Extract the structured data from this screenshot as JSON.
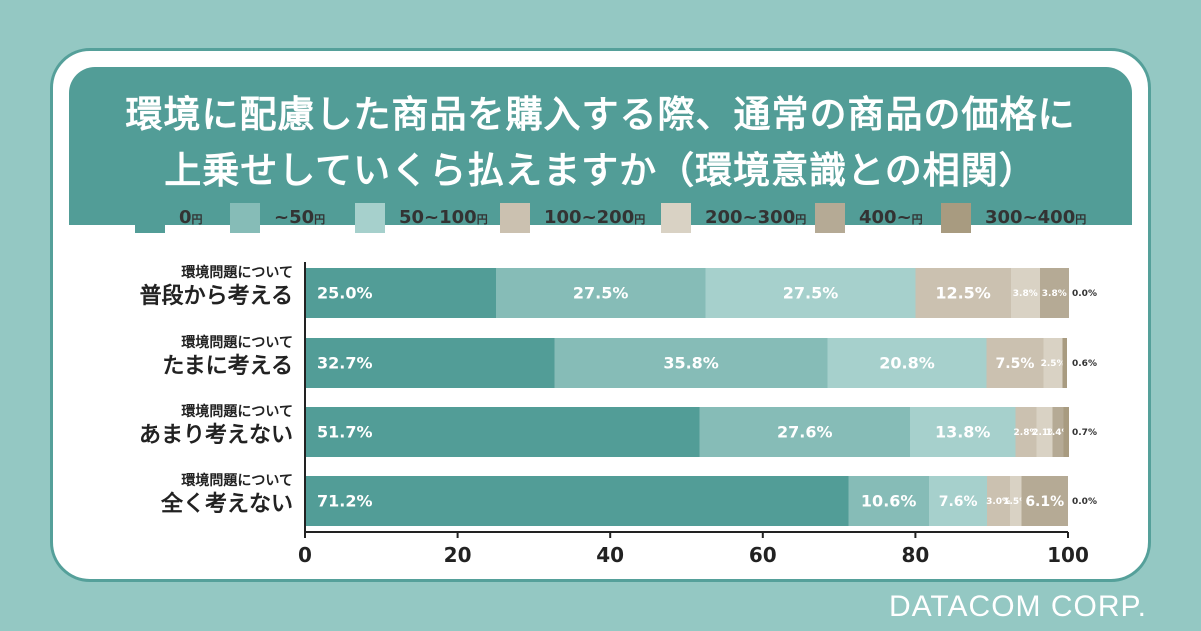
{
  "chart_data": {
    "type": "bar",
    "orientation": "horizontal",
    "stacked": true,
    "title": "環境に配慮した商品を購入する際、通常の商品の価格に上乗せしていくら払えますか（環境意識との相関）",
    "title_lines": [
      "環境に配慮した商品を購入する際、通常の商品の価格に",
      "上乗せしていくら払えますか（環境意識との相関）"
    ],
    "categories": [
      {
        "sub": "環境問題について",
        "main": "普段から考える"
      },
      {
        "sub": "環境問題について",
        "main": "たまに考える"
      },
      {
        "sub": "環境問題について",
        "main": "あまり考えない"
      },
      {
        "sub": "環境問題について",
        "main": "全く考えない"
      }
    ],
    "legend_unit": "円",
    "series": [
      {
        "name": "0",
        "color": "#529d97",
        "values": [
          25.0,
          32.7,
          51.7,
          71.2
        ]
      },
      {
        "name": "~50",
        "color": "#86bcb7",
        "values": [
          27.5,
          35.8,
          27.6,
          10.6
        ]
      },
      {
        "name": "50~100",
        "color": "#a6d0cc",
        "values": [
          27.5,
          20.8,
          13.8,
          7.6
        ]
      },
      {
        "name": "100~200",
        "color": "#cbc1b0",
        "values": [
          12.5,
          7.5,
          2.8,
          3.0
        ]
      },
      {
        "name": "200~300",
        "color": "#d9d2c4",
        "values": [
          3.8,
          2.5,
          2.1,
          1.5
        ]
      },
      {
        "name": "400~",
        "color": "#b5aa95",
        "values": [
          3.8,
          0.0,
          1.4,
          6.1
        ]
      },
      {
        "name": "300~400",
        "color": "#a89b80",
        "values": [
          0.0,
          0.6,
          0.7,
          0.0
        ]
      }
    ],
    "value_labels": [
      [
        "25.0%",
        "27.5%",
        "27.5%",
        "12.5%",
        "3.8%",
        "3.8%",
        "0.0%"
      ],
      [
        "32.7%",
        "35.8%",
        "20.8%",
        "7.5%",
        "2.5%",
        "",
        "0.6%"
      ],
      [
        "51.7%",
        "27.6%",
        "13.8%",
        "2.8%",
        "2.1%",
        "1.4%",
        "0.7%"
      ],
      [
        "71.2%",
        "10.6%",
        "7.6%",
        "3.0%",
        "1.5%",
        "6.1%",
        "0.0%"
      ]
    ],
    "xlim": [
      0,
      100
    ],
    "xticks": [
      "0",
      "20",
      "40",
      "60",
      "80",
      "100"
    ],
    "xlabel": "",
    "ylabel": ""
  },
  "brand": "DATACOM CORP."
}
